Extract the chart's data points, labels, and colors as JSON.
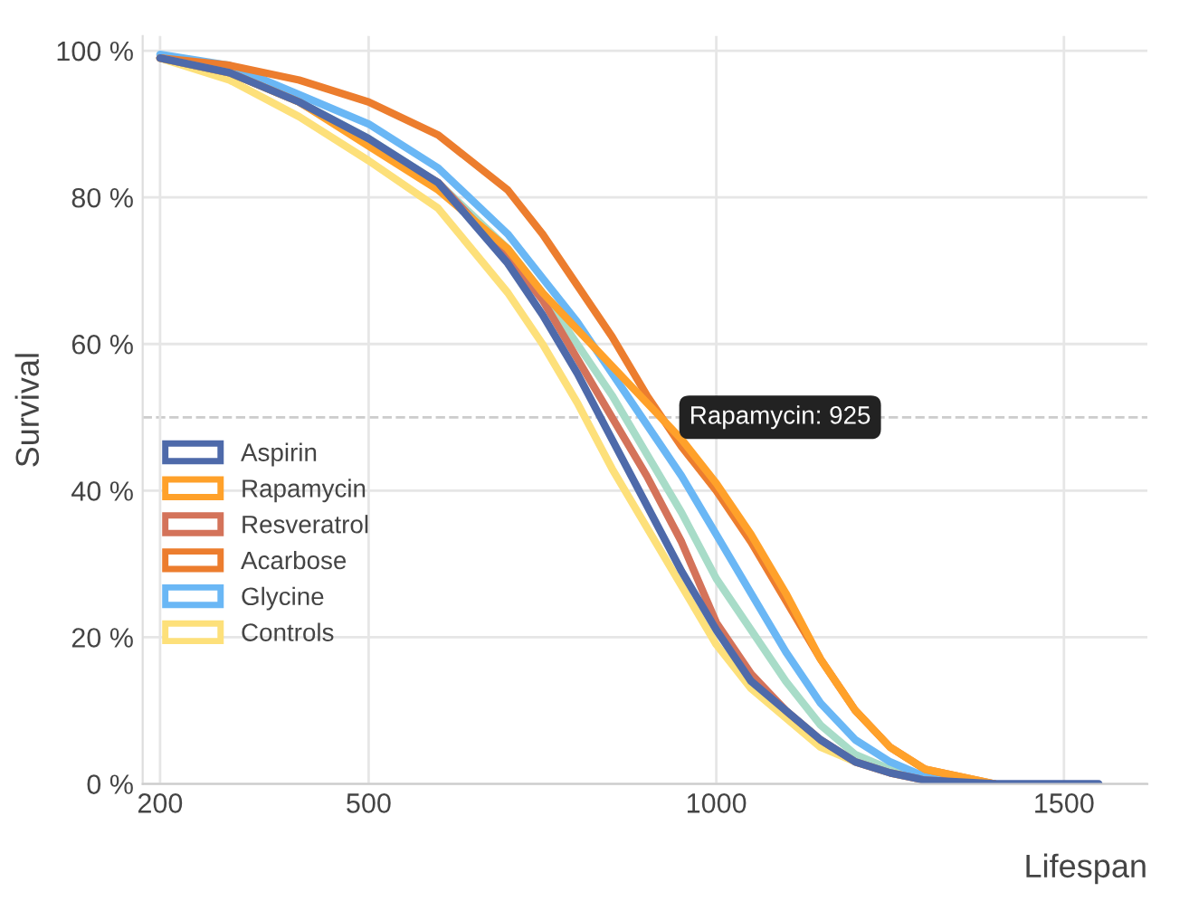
{
  "chart_data": {
    "type": "line",
    "xlabel": "Lifespan",
    "ylabel": "Survival",
    "x": [
      200,
      300,
      400,
      500,
      600,
      700,
      750,
      800,
      850,
      900,
      950,
      1000,
      1050,
      1100,
      1150,
      1200,
      1250,
      1300,
      1400
    ],
    "series": [
      {
        "name": "Controls",
        "color": "#fde07a",
        "values": [
          99,
          96,
          91,
          85,
          78.5,
          67,
          60,
          52,
          43,
          35,
          27,
          19,
          13,
          9,
          5,
          3,
          1.5,
          0.5,
          0
        ]
      },
      {
        "color": "#a8dcc8",
        "values": [
          99,
          97,
          93,
          88,
          82,
          73,
          67,
          60,
          53,
          45,
          37,
          28,
          21,
          14,
          8,
          4,
          2,
          0.5,
          0
        ]
      },
      {
        "name": "Glycine",
        "color": "#6ab7f5",
        "values": [
          99.5,
          98,
          94,
          90,
          84,
          75,
          69,
          63,
          56,
          49,
          42,
          34,
          26,
          18,
          11,
          6,
          3,
          1,
          0
        ]
      },
      {
        "name": "Acarbose",
        "color": "#ec7d2e",
        "values": [
          99,
          98,
          96,
          93,
          88.5,
          81,
          75,
          68,
          61,
          53,
          46,
          40,
          33,
          25,
          17,
          10,
          5,
          2,
          0
        ]
      },
      {
        "name": "Resveratrol",
        "color": "#d4735a",
        "values": [
          99,
          97,
          93,
          87.5,
          82,
          72,
          66,
          58,
          50,
          42,
          33,
          22,
          15,
          10,
          6,
          3,
          1.5,
          0.5,
          0
        ]
      },
      {
        "name": "Rapamycin",
        "color": "#ffa12a",
        "values": [
          99,
          97,
          93,
          87,
          81,
          73,
          67,
          62,
          57,
          52,
          47,
          41,
          34,
          26,
          17,
          10,
          5,
          2,
          0
        ]
      },
      {
        "name": "Aspirin",
        "color": "#4e6aaa",
        "x": [
          200,
          300,
          400,
          500,
          600,
          700,
          750,
          800,
          850,
          900,
          950,
          1000,
          1050,
          1100,
          1150,
          1200,
          1250,
          1300,
          1400,
          1550
        ],
        "values": [
          99,
          97,
          93,
          88,
          82,
          71,
          64,
          56,
          47,
          38,
          29,
          21,
          14,
          10,
          6,
          3,
          1.5,
          0.5,
          0,
          0
        ]
      }
    ],
    "xlim": [
      175,
      1620
    ],
    "xticks": [
      200,
      500,
      1000,
      1500
    ],
    "ylim": [
      0,
      102
    ],
    "yticks": [
      {
        "value": 0,
        "label": "0 %"
      },
      {
        "value": 20,
        "label": "20 %"
      },
      {
        "value": 40,
        "label": "40 %"
      },
      {
        "value": 60,
        "label": "60 %"
      },
      {
        "value": 80,
        "label": "80 %"
      },
      {
        "value": 100,
        "label": "100 %"
      }
    ],
    "ref_lines": [
      {
        "axis": "y",
        "value": 50,
        "color": "#cccccc",
        "line_style": "dashed"
      }
    ],
    "annotations": [
      {
        "text": "Rapamycin: 925",
        "x": 925,
        "y": 50
      }
    ],
    "grid": true,
    "legend": "left",
    "line_style": "solid"
  }
}
